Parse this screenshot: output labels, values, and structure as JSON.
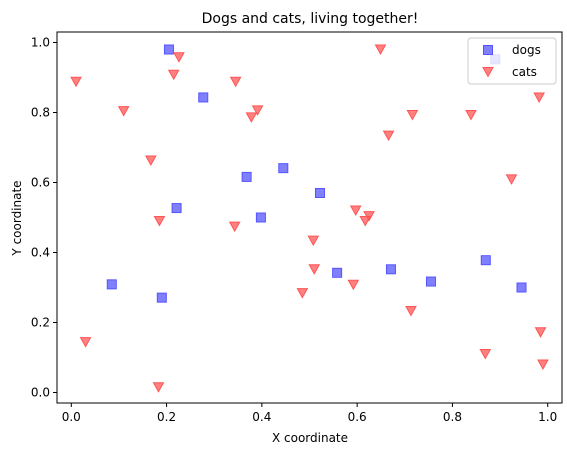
{
  "chart_data": {
    "type": "scatter",
    "title": "Dogs and cats, living together!",
    "xlabel": "X coordinate",
    "ylabel": "Y coordinate",
    "xlim": [
      -0.03,
      1.03
    ],
    "ylim": [
      -0.03,
      1.03
    ],
    "xticks": [
      0.0,
      0.2,
      0.4,
      0.6,
      0.8,
      1.0
    ],
    "xtick_labels": [
      "0.0",
      "0.2",
      "0.4",
      "0.6",
      "0.8",
      "1.0"
    ],
    "yticks": [
      0.0,
      0.2,
      0.4,
      0.6,
      0.8,
      1.0
    ],
    "ytick_labels": [
      "0.0",
      "0.2",
      "0.4",
      "0.6",
      "0.8",
      "1.0"
    ],
    "legend_position": "top-right",
    "series": [
      {
        "name": "dogs",
        "marker": "square",
        "color": "#5555ff",
        "points": [
          {
            "x": 0.205,
            "y": 0.98
          },
          {
            "x": 0.277,
            "y": 0.843
          },
          {
            "x": 0.368,
            "y": 0.616
          },
          {
            "x": 0.445,
            "y": 0.641
          },
          {
            "x": 0.522,
            "y": 0.57
          },
          {
            "x": 0.221,
            "y": 0.527
          },
          {
            "x": 0.398,
            "y": 0.5
          },
          {
            "x": 0.085,
            "y": 0.309
          },
          {
            "x": 0.19,
            "y": 0.271
          },
          {
            "x": 0.558,
            "y": 0.342
          },
          {
            "x": 0.671,
            "y": 0.352
          },
          {
            "x": 0.755,
            "y": 0.317
          },
          {
            "x": 0.87,
            "y": 0.378
          },
          {
            "x": 0.945,
            "y": 0.3
          },
          {
            "x": 0.89,
            "y": 0.952
          }
        ]
      },
      {
        "name": "cats",
        "marker": "triangle-down",
        "color": "#ff5555",
        "points": [
          {
            "x": 0.01,
            "y": 0.888
          },
          {
            "x": 0.11,
            "y": 0.804
          },
          {
            "x": 0.215,
            "y": 0.908
          },
          {
            "x": 0.226,
            "y": 0.958
          },
          {
            "x": 0.345,
            "y": 0.888
          },
          {
            "x": 0.378,
            "y": 0.786
          },
          {
            "x": 0.391,
            "y": 0.806
          },
          {
            "x": 0.167,
            "y": 0.663
          },
          {
            "x": 0.185,
            "y": 0.49
          },
          {
            "x": 0.343,
            "y": 0.474
          },
          {
            "x": 0.03,
            "y": 0.144
          },
          {
            "x": 0.183,
            "y": 0.015
          },
          {
            "x": 0.508,
            "y": 0.434
          },
          {
            "x": 0.51,
            "y": 0.352
          },
          {
            "x": 0.485,
            "y": 0.284
          },
          {
            "x": 0.592,
            "y": 0.308
          },
          {
            "x": 0.597,
            "y": 0.52
          },
          {
            "x": 0.617,
            "y": 0.49
          },
          {
            "x": 0.625,
            "y": 0.504
          },
          {
            "x": 0.649,
            "y": 0.98
          },
          {
            "x": 0.666,
            "y": 0.734
          },
          {
            "x": 0.716,
            "y": 0.793
          },
          {
            "x": 0.713,
            "y": 0.233
          },
          {
            "x": 0.839,
            "y": 0.793
          },
          {
            "x": 0.869,
            "y": 0.11
          },
          {
            "x": 0.924,
            "y": 0.609
          },
          {
            "x": 0.982,
            "y": 0.843
          },
          {
            "x": 0.985,
            "y": 0.172
          },
          {
            "x": 0.99,
            "y": 0.08
          }
        ]
      }
    ]
  }
}
